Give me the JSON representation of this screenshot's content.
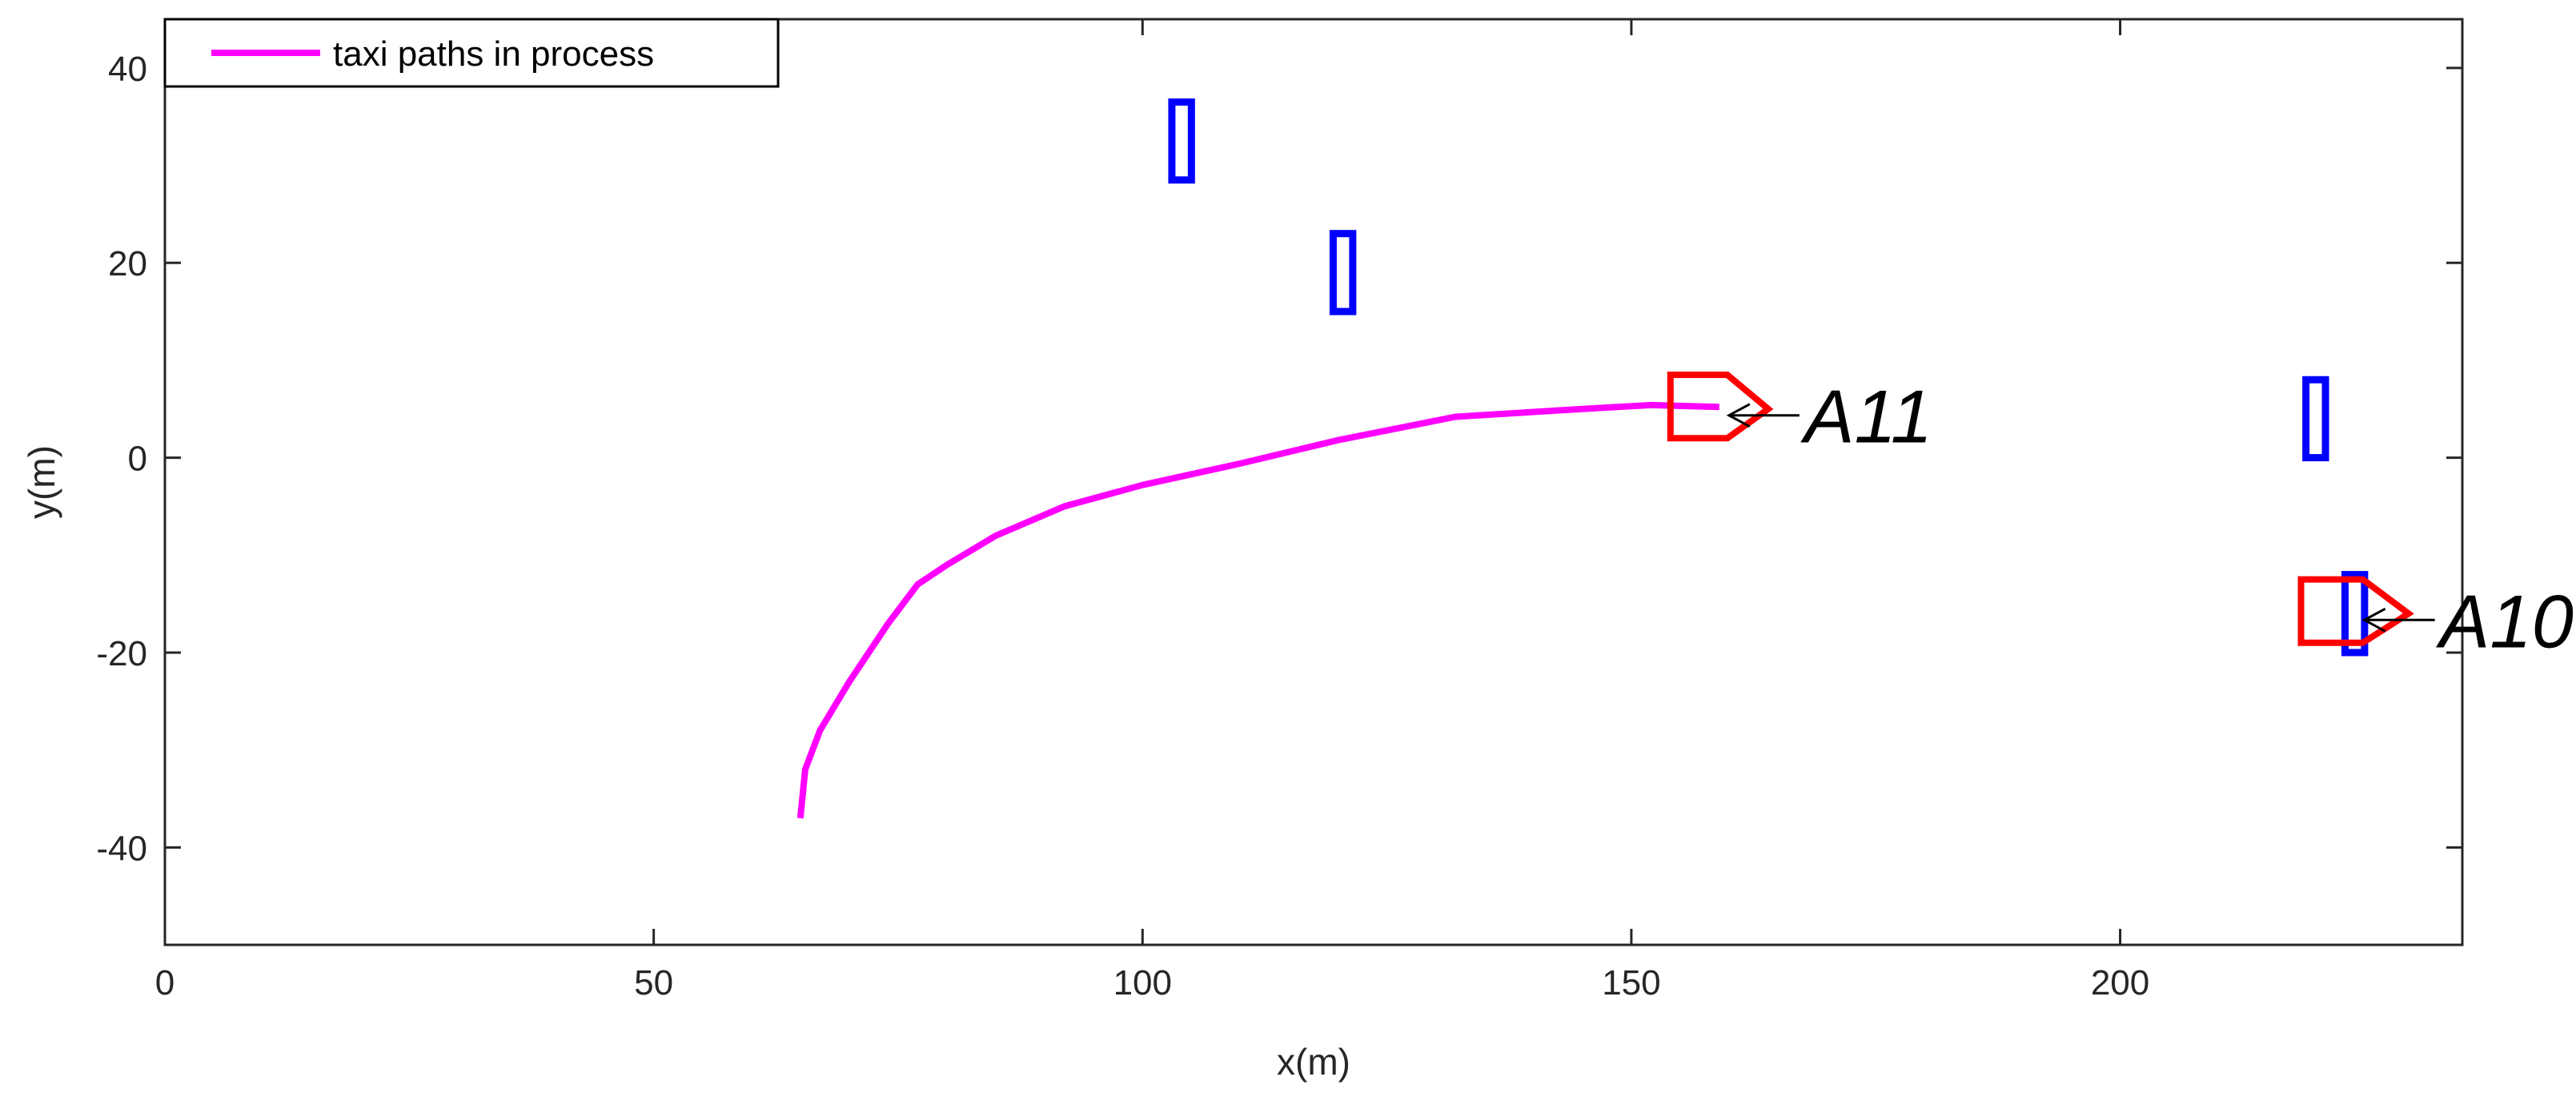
{
  "chart_data": {
    "type": "line",
    "title": "",
    "xlabel": "x(m)",
    "ylabel": "y(m)",
    "xlim": [
      0,
      235
    ],
    "ylim": [
      -50,
      45
    ],
    "xticks": [
      0,
      50,
      100,
      150,
      200
    ],
    "yticks": [
      -40,
      -20,
      0,
      20,
      40
    ],
    "xtick_labels": [
      "0",
      "50",
      "100",
      "150",
      "200"
    ],
    "ytick_labels": [
      "-40",
      "-20",
      "0",
      "20",
      "40"
    ],
    "grid": false,
    "legend": {
      "position": "top-left",
      "entries": [
        {
          "label": "taxi paths in process",
          "color": "#ff00ff"
        }
      ]
    },
    "series": [
      {
        "name": "taxi paths in process",
        "color": "#ff00ff",
        "x": [
          65,
          65.5,
          67,
          70,
          74,
          77,
          80,
          85,
          92,
          100,
          110,
          120,
          132,
          145,
          152,
          159
        ],
        "y": [
          -37,
          -32,
          -28,
          -23,
          -17,
          -13,
          -11,
          -8,
          -5,
          -2.8,
          -0.6,
          1.8,
          4.2,
          5.0,
          5.4,
          5.2
        ]
      }
    ],
    "obstacles": {
      "color": "#0000ff",
      "items": [
        {
          "x": [
            103,
            105
          ],
          "y": [
            28.5,
            36.5
          ]
        },
        {
          "x": [
            119.5,
            121.5
          ],
          "y": [
            15,
            23
          ]
        },
        {
          "x": [
            219,
            221
          ],
          "y": [
            0,
            8
          ]
        },
        {
          "x": [
            223,
            225
          ],
          "y": [
            -20,
            -12
          ]
        }
      ]
    },
    "aircraft": {
      "color": "#ff0000",
      "items": [
        {
          "label": "A11",
          "x": [
            154,
            159,
            164
          ],
          "y": [
            2,
            5,
            8.5
          ]
        },
        {
          "label": "A10",
          "x": [
            218.5,
            224,
            229.5
          ],
          "y": [
            -19,
            -16,
            -12.5
          ]
        }
      ]
    },
    "annotations": [
      {
        "text": "A11",
        "color": "#000000"
      },
      {
        "text": "A10",
        "color": "#000000"
      }
    ]
  }
}
